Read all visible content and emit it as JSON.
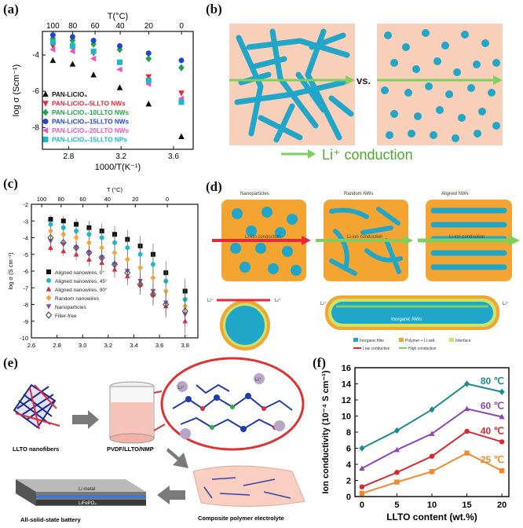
{
  "panel_labels": {
    "a": "(a)",
    "b": "(b)",
    "c": "(c)",
    "d": "(d)",
    "e": "(e)",
    "f": "(f)"
  },
  "colors": {
    "black": "#111111",
    "red": "#e8273a",
    "green": "#22a24a",
    "blue": "#2346c8",
    "magenta": "#e657c9",
    "cyan": "#19b9c8",
    "salmon": "#f8cfb9",
    "nw": "#1fa6c8",
    "arrow_green": "#7fcf5d",
    "orange": "#f3a431",
    "line80": "#1e8a93",
    "line60": "#8e44b6",
    "line40": "#d9282d",
    "line25": "#f08a2c"
  },
  "chart_data": [
    {
      "id": "a",
      "type": "scatter",
      "xlabel": "1000/T(K⁻¹)",
      "ylabel": "log σ (Scm⁻¹)",
      "top_axis_label": "T(°C)",
      "top_ticks": [
        "100",
        "80",
        "60",
        "40",
        "20",
        "0"
      ],
      "top_tick_temps": [
        100,
        80,
        60,
        40,
        20,
        0
      ],
      "xticks": [
        "2.8",
        "3.2",
        "3.6"
      ],
      "xtick_values": [
        2.8,
        3.2,
        3.6
      ],
      "yticks": [
        "-4",
        "-6",
        "-8"
      ],
      "ytick_values": [
        -4,
        -6,
        -8
      ],
      "xlim": [
        2.6,
        3.75
      ],
      "ylim": [
        -9.2,
        -2.7
      ],
      "x": [
        2.68,
        2.83,
        2.99,
        3.19,
        3.41,
        3.66
      ],
      "series": [
        {
          "name": "PAN-LiClO₄",
          "marker": "triangle-up",
          "color": "#111111",
          "values": [
            -4.3,
            -4.5,
            -5.1,
            -5.8,
            -6.7,
            -8.5
          ]
        },
        {
          "name": "PAN-LiClO₄-5LLTO NWs",
          "marker": "triangle-down",
          "color": "#e8273a",
          "values": [
            -3.5,
            -3.6,
            -3.9,
            -4.4,
            -5.2,
            -6.1
          ]
        },
        {
          "name": "PAN-LiClO₄-10LLTO NWs",
          "marker": "diamond",
          "color": "#22a24a",
          "values": [
            -3.1,
            -3.2,
            -3.4,
            -3.7,
            -4.2,
            -4.7
          ]
        },
        {
          "name": "PAN-LiClO₄-15LLTO NWs",
          "marker": "circle",
          "color": "#2346c8",
          "values": [
            -2.9,
            -3.0,
            -3.2,
            -3.5,
            -3.9,
            -4.3
          ]
        },
        {
          "name": "PAN-LiClO₄-20LLTO NWs",
          "marker": "triangle-left",
          "color": "#e657c9",
          "values": [
            -3.7,
            -3.8,
            -4.2,
            -4.8,
            -5.6,
            -6.4
          ]
        },
        {
          "name": "PAN-LiClO₄-15LLTO NPs",
          "marker": "square",
          "color": "#19b9c8",
          "values": [
            -3.3,
            -3.5,
            -3.8,
            -4.4,
            -5.4,
            -6.6
          ]
        }
      ]
    },
    {
      "id": "c",
      "type": "scatter",
      "xlabel": "1,000 T⁻¹ (K⁻¹)",
      "ylabel": "log σ (S cm⁻¹)",
      "top_axis_label": "T (°C)",
      "top_ticks": [
        "100",
        "80",
        "60",
        "40",
        "20",
        "0"
      ],
      "top_tick_temps": [
        100,
        80,
        60,
        40,
        20,
        0
      ],
      "xticks": [
        "2.6",
        "2.8",
        "3.0",
        "3.2",
        "3.4",
        "3.6",
        "3.8"
      ],
      "xtick_values": [
        2.6,
        2.8,
        3.0,
        3.2,
        3.4,
        3.6,
        3.8
      ],
      "yticks": [
        "-2",
        "-3",
        "-4",
        "-5",
        "-6",
        "-7",
        "-8",
        "-9",
        "-10"
      ],
      "ytick_values": [
        -2,
        -3,
        -4,
        -5,
        -6,
        -7,
        -8,
        -9,
        -10
      ],
      "xlim": [
        2.6,
        3.9
      ],
      "ylim": [
        -10,
        -2
      ],
      "x": [
        2.75,
        2.85,
        2.95,
        3.05,
        3.15,
        3.25,
        3.35,
        3.45,
        3.55,
        3.65,
        3.8
      ],
      "series": [
        {
          "name": "Aligned nanowires, 0°",
          "marker": "square",
          "color": "#111111",
          "values": [
            -2.9,
            -3.0,
            -3.2,
            -3.4,
            -3.6,
            -3.8,
            -4.1,
            -4.5,
            -5.0,
            -6.1,
            -7.2
          ]
        },
        {
          "name": "Aligned nanowires, 45°",
          "marker": "circle",
          "color": "#19b9c8",
          "values": [
            -3.2,
            -3.4,
            -3.6,
            -3.8,
            -4.0,
            -4.3,
            -4.6,
            -5.0,
            -5.6,
            -6.6,
            -7.7
          ]
        },
        {
          "name": "Aligned nanowires, 90°",
          "marker": "triangle-up",
          "color": "#e8273a",
          "values": [
            -4.6,
            -4.8,
            -5.0,
            -5.3,
            -5.5,
            -5.9,
            -6.3,
            -6.8,
            -7.4,
            -8.1,
            -9.0
          ]
        },
        {
          "name": "Random nanowires",
          "marker": "diamond",
          "color": "#f3a431",
          "values": [
            -3.6,
            -3.8,
            -4.0,
            -4.3,
            -4.6,
            -4.9,
            -5.3,
            -5.8,
            -6.4,
            -7.2,
            -8.1
          ]
        },
        {
          "name": "Nanoparticles",
          "marker": "triangle-down",
          "color": "#8e44b6",
          "values": [
            -4.2,
            -4.4,
            -4.6,
            -4.9,
            -5.2,
            -5.6,
            -6.0,
            -6.6,
            -7.2,
            -7.9,
            -8.6
          ]
        },
        {
          "name": "Filler-free",
          "marker": "diamond-open",
          "color": "#555555",
          "values": [
            -4.0,
            -4.3,
            -4.6,
            -4.9,
            -5.2,
            -5.6,
            -6.1,
            -6.8,
            -7.4,
            -8.0,
            -8.4
          ]
        }
      ]
    },
    {
      "id": "f",
      "type": "line",
      "xlabel": "LLTO content (wt.%)",
      "ylabel": "Ion conductivity (10⁻⁴ S cm⁻¹)",
      "x": [
        0,
        5,
        10,
        15,
        20
      ],
      "xticks": [
        "0",
        "5",
        "10",
        "15",
        "20"
      ],
      "yticks": [
        "0",
        "2",
        "4",
        "6",
        "8",
        "10",
        "12",
        "14",
        "16"
      ],
      "ytick_values": [
        0,
        2,
        4,
        6,
        8,
        10,
        12,
        14,
        16
      ],
      "xlim": [
        -1,
        21
      ],
      "ylim": [
        0,
        16
      ],
      "series": [
        {
          "name": "80 ℃",
          "color": "#1e8a93",
          "marker": "diamond",
          "values": [
            6.0,
            8.2,
            10.8,
            14.0,
            13.0
          ]
        },
        {
          "name": "60 ℃",
          "color": "#8e44b6",
          "marker": "triangle",
          "values": [
            3.5,
            5.8,
            7.8,
            10.9,
            9.9
          ]
        },
        {
          "name": "40 ℃",
          "color": "#d9282d",
          "marker": "circle",
          "values": [
            1.2,
            3.0,
            5.0,
            8.1,
            6.8
          ]
        },
        {
          "name": "25 ℃",
          "color": "#f08a2c",
          "marker": "square",
          "values": [
            0.4,
            1.8,
            3.1,
            5.4,
            3.2
          ]
        }
      ]
    }
  ],
  "panel_b": {
    "vs": "vs.",
    "conduction": "Li⁺ conduction"
  },
  "panel_d": {
    "titles": [
      "Nanoparticles",
      "Random NWs",
      "Aligned NWs"
    ],
    "arrow_text": "Li-ion conduction",
    "li": "Li⁺",
    "inorganic_nws": "Inorganic NWs",
    "legend": [
      "Inorganic filler",
      "Polymer + Li salt",
      "Interface",
      "Low conductive",
      "High conductive"
    ]
  },
  "panel_e": {
    "labels": {
      "nanofibers": "LLTO nanofibers",
      "solution": "PVDF/LLTO/NMP",
      "battery": "All-solid-state battery",
      "cpe": "Composite polymer electrolyte",
      "li_metal": "Li metal",
      "lifepo4": "LiFePO₄",
      "li": "Li⁺"
    }
  }
}
